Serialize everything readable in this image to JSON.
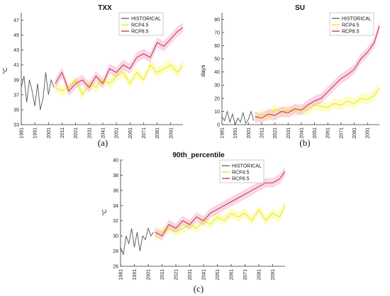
{
  "chart_data": [
    {
      "id": "a",
      "type": "line",
      "title": "TXX",
      "ylabel": "°C",
      "caption": "(a)",
      "xlim": [
        1981,
        2100
      ],
      "ylim": [
        33,
        48
      ],
      "yticks": [
        33,
        35,
        37,
        39,
        41,
        43,
        45,
        47
      ],
      "xticks": [
        1981,
        1991,
        2001,
        2011,
        2021,
        2031,
        2041,
        2051,
        2061,
        2071,
        2081,
        2091
      ],
      "legend": "top-right",
      "series": [
        {
          "name": "HISTORICAL",
          "color": "#555555",
          "x": [
            1981,
            1983,
            1985,
            1987,
            1989,
            1991,
            1993,
            1995,
            1997,
            1999,
            2001,
            2003,
            2005
          ],
          "y": [
            38,
            39.5,
            36,
            39,
            37.5,
            35.5,
            38.5,
            35,
            36.5,
            40,
            37,
            39,
            38
          ]
        },
        {
          "name": "RCP4.5",
          "color": "#e6e600",
          "x": [
            2006,
            2011,
            2016,
            2021,
            2026,
            2031,
            2036,
            2041,
            2046,
            2051,
            2056,
            2061,
            2066,
            2071,
            2076,
            2081,
            2086,
            2091,
            2096,
            2100
          ],
          "y": [
            38,
            37.5,
            38,
            39,
            37,
            38.5,
            38,
            39,
            38.5,
            39.5,
            40,
            38.5,
            40,
            39,
            41,
            40,
            40.5,
            41,
            40,
            41
          ]
        },
        {
          "name": "RCP8.5",
          "color": "#cc1a1a",
          "x": [
            2006,
            2011,
            2016,
            2021,
            2026,
            2031,
            2036,
            2041,
            2046,
            2051,
            2056,
            2061,
            2066,
            2071,
            2076,
            2081,
            2086,
            2091,
            2096,
            2100
          ],
          "y": [
            38.5,
            40,
            37.5,
            38.5,
            39,
            38,
            39.5,
            38.5,
            40.5,
            40,
            41,
            40.5,
            42,
            42.5,
            42,
            44,
            43.5,
            44.5,
            45.5,
            46
          ]
        }
      ]
    },
    {
      "id": "b",
      "type": "line",
      "title": "SU",
      "ylabel": "days",
      "caption": "(b)",
      "xlim": [
        1981,
        2100
      ],
      "ylim": [
        0,
        85
      ],
      "yticks": [
        0,
        10,
        20,
        30,
        40,
        50,
        60,
        70,
        80
      ],
      "xticks": [
        1981,
        1991,
        2001,
        2011,
        2021,
        2031,
        2041,
        2051,
        2061,
        2071,
        2081,
        2091
      ],
      "legend": "top-right",
      "series": [
        {
          "name": "HISTORICAL",
          "color": "#555555",
          "x": [
            1981,
            1983,
            1985,
            1987,
            1989,
            1991,
            1993,
            1995,
            1997,
            1999,
            2001,
            2003,
            2005
          ],
          "y": [
            6,
            3,
            10,
            2,
            8,
            0,
            5,
            2,
            9,
            1,
            4,
            10,
            3
          ]
        },
        {
          "name": "RCP4.5",
          "color": "#e6e600",
          "x": [
            2006,
            2011,
            2016,
            2021,
            2026,
            2031,
            2036,
            2041,
            2046,
            2051,
            2056,
            2061,
            2066,
            2071,
            2076,
            2081,
            2086,
            2091,
            2096,
            2100
          ],
          "y": [
            5,
            8,
            6,
            12,
            9,
            11,
            10,
            12,
            11,
            15,
            14,
            13,
            16,
            15,
            18,
            16,
            20,
            19,
            22,
            28
          ]
        },
        {
          "name": "RCP8.5",
          "color": "#cc1a1a",
          "x": [
            2006,
            2011,
            2016,
            2021,
            2026,
            2031,
            2036,
            2041,
            2046,
            2051,
            2056,
            2061,
            2066,
            2071,
            2076,
            2081,
            2086,
            2091,
            2096,
            2100
          ],
          "y": [
            6,
            5,
            8,
            7,
            10,
            9,
            12,
            11,
            15,
            18,
            20,
            25,
            30,
            35,
            38,
            42,
            50,
            55,
            62,
            75
          ]
        }
      ]
    },
    {
      "id": "c",
      "type": "line",
      "title": "90th_percentile",
      "ylabel": "°C",
      "caption": "(c)",
      "xlim": [
        1981,
        2100
      ],
      "ylim": [
        26,
        40
      ],
      "yticks": [
        26,
        28,
        30,
        32,
        34,
        36,
        38,
        40
      ],
      "xticks": [
        1981,
        1991,
        2001,
        2011,
        2021,
        2031,
        2041,
        2051,
        2061,
        2071,
        2081,
        2091
      ],
      "legend": "top-right",
      "series": [
        {
          "name": "HISTORICAL",
          "color": "#555555",
          "x": [
            1981,
            1983,
            1985,
            1987,
            1989,
            1991,
            1993,
            1995,
            1997,
            1999,
            2001,
            2003,
            2005
          ],
          "y": [
            28.5,
            27.5,
            30,
            29,
            31,
            28.5,
            30.5,
            28,
            30,
            29.5,
            31,
            30,
            30.5
          ]
        },
        {
          "name": "RCP4.5",
          "color": "#e6e600",
          "x": [
            2006,
            2011,
            2016,
            2021,
            2026,
            2031,
            2036,
            2041,
            2046,
            2051,
            2056,
            2061,
            2066,
            2071,
            2076,
            2081,
            2086,
            2091,
            2096,
            2100
          ],
          "y": [
            30,
            30.5,
            31,
            30.5,
            31,
            31.5,
            31,
            32,
            31.5,
            32.5,
            32,
            33,
            32.5,
            33,
            32,
            33.5,
            32,
            33,
            32.5,
            34
          ]
        },
        {
          "name": "RCP8.5",
          "color": "#cc1a1a",
          "x": [
            2006,
            2011,
            2016,
            2021,
            2026,
            2031,
            2036,
            2041,
            2046,
            2051,
            2056,
            2061,
            2066,
            2071,
            2076,
            2081,
            2086,
            2091,
            2096,
            2100
          ],
          "y": [
            30.5,
            30,
            31.5,
            31,
            32,
            31.5,
            32.5,
            32,
            33,
            33.5,
            34,
            34.5,
            35,
            35.5,
            36,
            36.5,
            37,
            37,
            37.5,
            38.5
          ]
        }
      ]
    }
  ]
}
